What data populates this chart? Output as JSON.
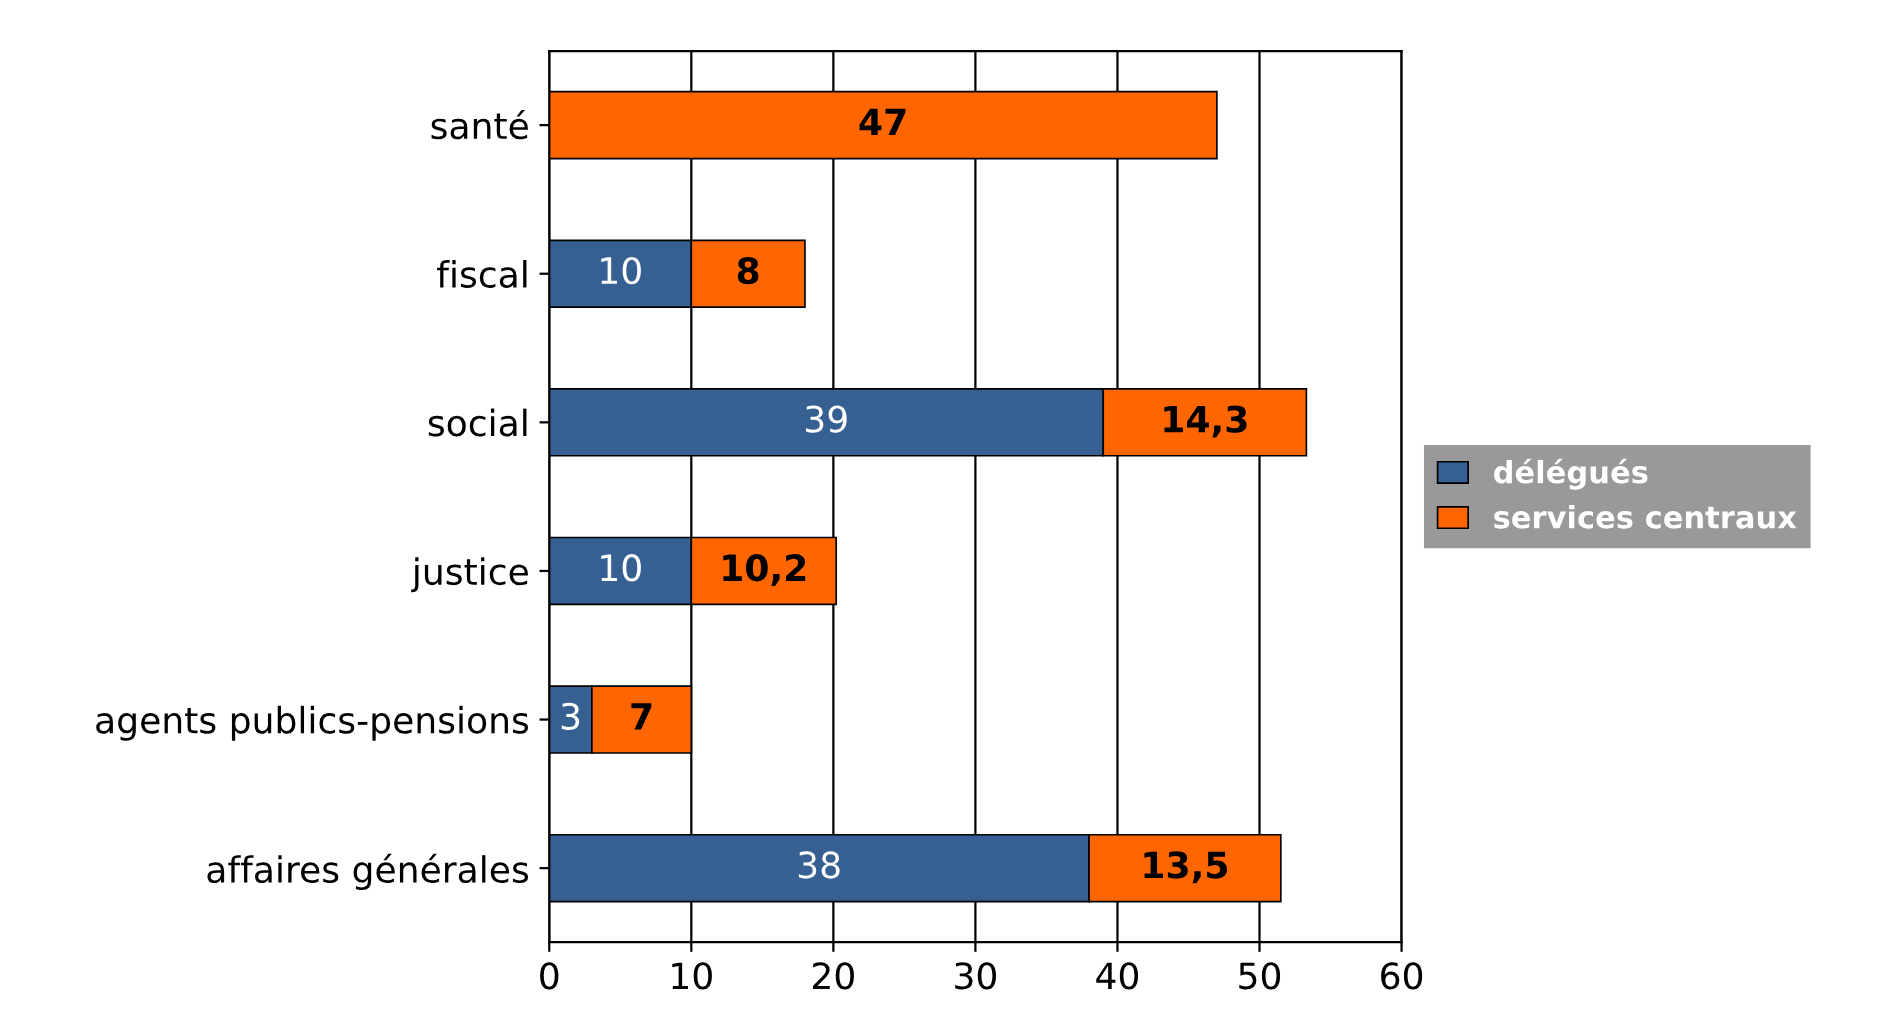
{
  "chart_data": {
    "type": "bar",
    "orientation": "horizontal",
    "stacked": true,
    "categories": [
      "santé",
      "fiscal",
      "social",
      "justice",
      "agents publics-pensions",
      "affaires générales"
    ],
    "series": [
      {
        "name": "délégués",
        "color": "#376092",
        "values": [
          null,
          10,
          39,
          10,
          3,
          38
        ],
        "value_labels": [
          null,
          "10",
          "39",
          "10",
          "3",
          "38"
        ]
      },
      {
        "name": "services centraux",
        "color": "#ff6600",
        "values": [
          47,
          8,
          14.3,
          10.2,
          7,
          13.5
        ],
        "value_labels": [
          "47",
          "8",
          "14,3",
          "10,2",
          "7",
          "13,5"
        ]
      }
    ],
    "xlim": [
      0,
      60
    ],
    "xticks": [
      0,
      10,
      20,
      30,
      40,
      50,
      60
    ],
    "grid": "x",
    "legend": "right"
  }
}
